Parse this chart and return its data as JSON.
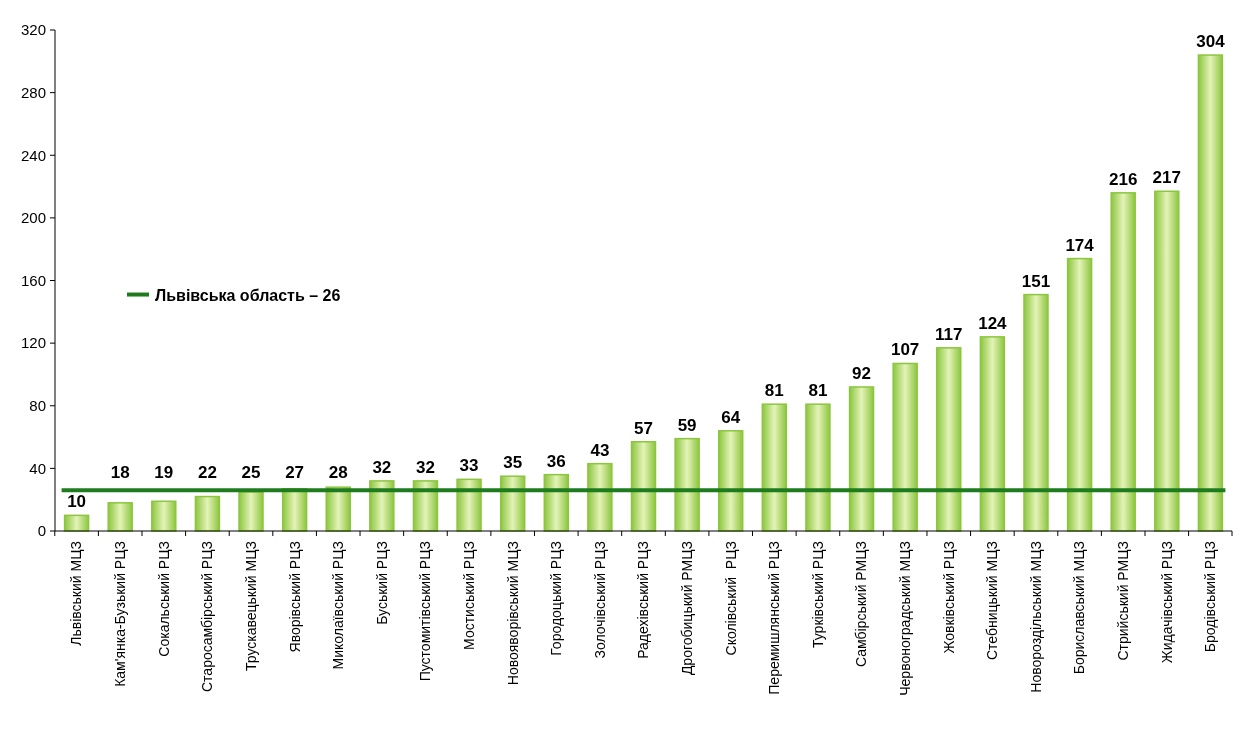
{
  "chart_data": {
    "type": "bar",
    "categories": [
      "Львівський МЦЗ",
      "Кам'янка-Бузький РЦЗ",
      "Сокальський РЦЗ",
      "Старосамбірський РЦЗ",
      "Трускавецький МЦЗ",
      "Яворівський РЦЗ",
      "Миколаївський РЦЗ",
      "Буський РЦЗ",
      "Пустомитівський РЦЗ",
      "Мостиський РЦЗ",
      "Новояворівський МЦЗ",
      "Городоцький РЦЗ",
      "Золочівський РЦЗ",
      "Радехівський РЦЗ",
      "Дрогобицький РМЦЗ",
      "Сколівський  РЦЗ",
      "Перемишлянський РЦЗ",
      "Турківський РЦЗ",
      "Самбірський РМЦЗ",
      "Червоноградський МЦЗ",
      "Жовківський РЦЗ",
      "Стебницький МЦЗ",
      "Новороздільський МЦЗ",
      "Бориславський МЦЗ",
      "Стрийський РМЦЗ",
      "Жидачівський РЦЗ",
      "Бродівський РЦЗ"
    ],
    "values": [
      10,
      18,
      19,
      22,
      25,
      27,
      28,
      32,
      32,
      33,
      35,
      36,
      43,
      57,
      59,
      64,
      81,
      81,
      92,
      107,
      117,
      124,
      151,
      174,
      216,
      217,
      304
    ],
    "color": "#8cc63f",
    "ylim": [
      0,
      320
    ],
    "yticks": [
      0,
      40,
      80,
      120,
      160,
      200,
      240,
      280,
      320
    ],
    "data_labels": true,
    "ref_lines": [
      {
        "axis": "y",
        "value": 26,
        "label": "Львівська область – 26",
        "color": "#1e7b1e"
      }
    ]
  }
}
